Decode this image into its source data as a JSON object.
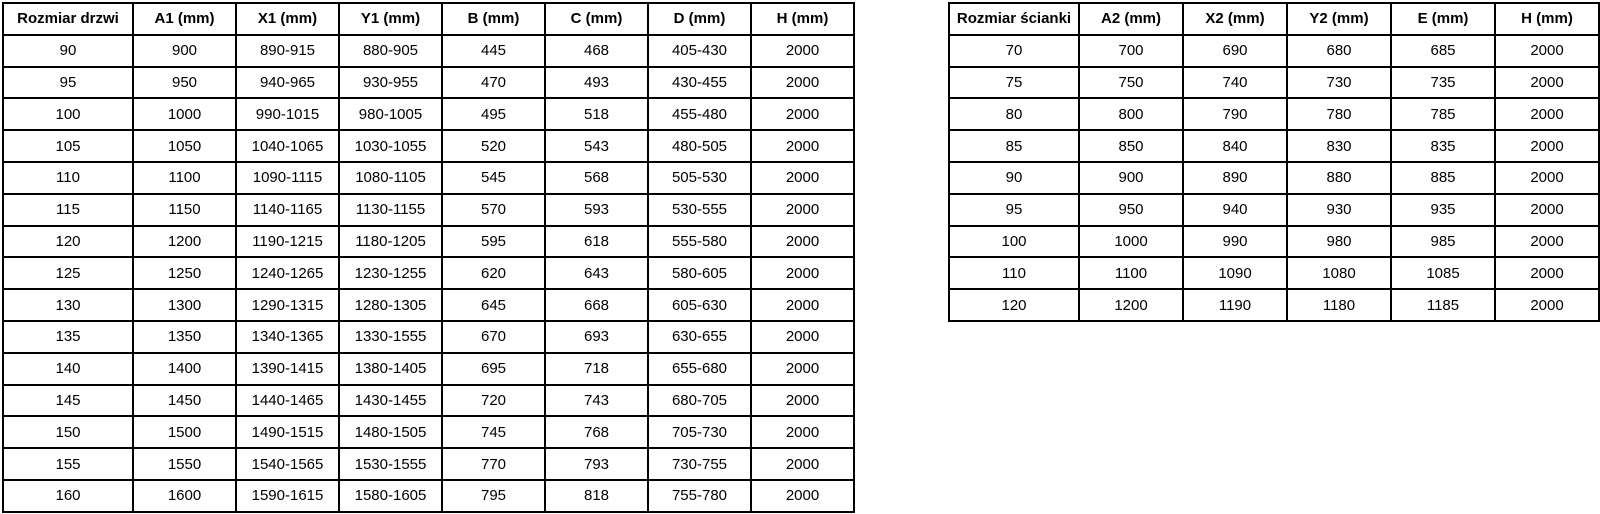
{
  "page": {
    "background_color": "#ffffff",
    "border_color": "#000000",
    "text_color": "#000000"
  },
  "door_table": {
    "headers": [
      "Rozmiar drzwi",
      "A1 (mm)",
      "X1 (mm)",
      "Y1 (mm)",
      "B (mm)",
      "C (mm)",
      "D (mm)",
      "H (mm)"
    ],
    "rows": [
      [
        "90",
        "900",
        "890-915",
        "880-905",
        "445",
        "468",
        "405-430",
        "2000"
      ],
      [
        "95",
        "950",
        "940-965",
        "930-955",
        "470",
        "493",
        "430-455",
        "2000"
      ],
      [
        "100",
        "1000",
        "990-1015",
        "980-1005",
        "495",
        "518",
        "455-480",
        "2000"
      ],
      [
        "105",
        "1050",
        "1040-1065",
        "1030-1055",
        "520",
        "543",
        "480-505",
        "2000"
      ],
      [
        "110",
        "1100",
        "1090-1115",
        "1080-1105",
        "545",
        "568",
        "505-530",
        "2000"
      ],
      [
        "115",
        "1150",
        "1140-1165",
        "1130-1155",
        "570",
        "593",
        "530-555",
        "2000"
      ],
      [
        "120",
        "1200",
        "1190-1215",
        "1180-1205",
        "595",
        "618",
        "555-580",
        "2000"
      ],
      [
        "125",
        "1250",
        "1240-1265",
        "1230-1255",
        "620",
        "643",
        "580-605",
        "2000"
      ],
      [
        "130",
        "1300",
        "1290-1315",
        "1280-1305",
        "645",
        "668",
        "605-630",
        "2000"
      ],
      [
        "135",
        "1350",
        "1340-1365",
        "1330-1555",
        "670",
        "693",
        "630-655",
        "2000"
      ],
      [
        "140",
        "1400",
        "1390-1415",
        "1380-1405",
        "695",
        "718",
        "655-680",
        "2000"
      ],
      [
        "145",
        "1450",
        "1440-1465",
        "1430-1455",
        "720",
        "743",
        "680-705",
        "2000"
      ],
      [
        "150",
        "1500",
        "1490-1515",
        "1480-1505",
        "745",
        "768",
        "705-730",
        "2000"
      ],
      [
        "155",
        "1550",
        "1540-1565",
        "1530-1555",
        "770",
        "793",
        "730-755",
        "2000"
      ],
      [
        "160",
        "1600",
        "1590-1615",
        "1580-1605",
        "795",
        "818",
        "755-780",
        "2000"
      ]
    ]
  },
  "wall_table": {
    "headers": [
      "Rozmiar ścianki",
      "A2 (mm)",
      "X2 (mm)",
      "Y2 (mm)",
      "E (mm)",
      "H (mm)"
    ],
    "rows": [
      [
        "70",
        "700",
        "690",
        "680",
        "685",
        "2000"
      ],
      [
        "75",
        "750",
        "740",
        "730",
        "735",
        "2000"
      ],
      [
        "80",
        "800",
        "790",
        "780",
        "785",
        "2000"
      ],
      [
        "85",
        "850",
        "840",
        "830",
        "835",
        "2000"
      ],
      [
        "90",
        "900",
        "890",
        "880",
        "885",
        "2000"
      ],
      [
        "95",
        "950",
        "940",
        "930",
        "935",
        "2000"
      ],
      [
        "100",
        "1000",
        "990",
        "980",
        "985",
        "2000"
      ],
      [
        "110",
        "1100",
        "1090",
        "1080",
        "1085",
        "2000"
      ],
      [
        "120",
        "1200",
        "1190",
        "1180",
        "1185",
        "2000"
      ]
    ]
  }
}
